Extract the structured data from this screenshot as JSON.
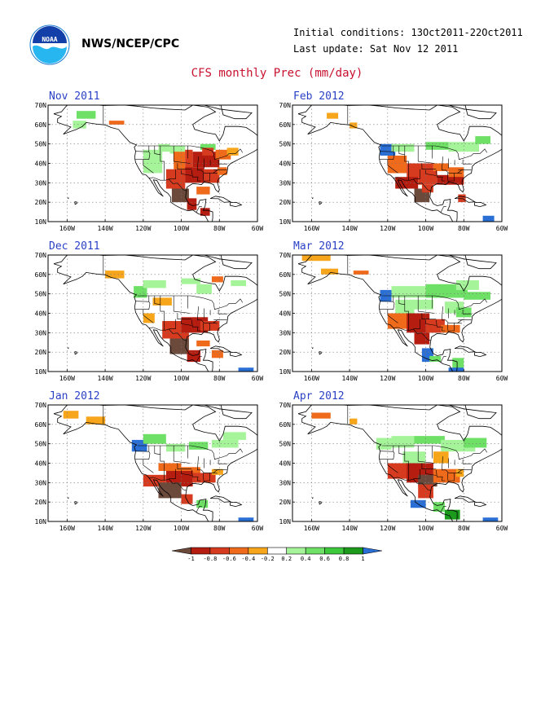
{
  "header": {
    "agency": "NWS/NCEP/CPC",
    "initial_conditions": "Initial conditions: 13Oct2011-22Oct2011",
    "last_update": "Last update: Sat Nov 12 2011",
    "title": "CFS monthly Prec (mm/day)",
    "logo_text": "NOAA"
  },
  "axes": {
    "lat_labels": [
      "70N",
      "60N",
      "50N",
      "40N",
      "30N",
      "20N",
      "10N"
    ],
    "lon_labels": [
      "160W",
      "140W",
      "120W",
      "100W",
      "80W",
      "60W"
    ]
  },
  "panels": [
    {
      "title": "Nov 2011"
    },
    {
      "title": "Feb 2012"
    },
    {
      "title": "Dec 2011"
    },
    {
      "title": "Mar 2012"
    },
    {
      "title": "Jan 2012"
    },
    {
      "title": "Apr 2012"
    }
  ],
  "colorbar": {
    "labels": [
      "-1",
      "-0.8",
      "-0.6",
      "-0.4",
      "-0.2",
      "0.2",
      "0.4",
      "0.6",
      "0.8",
      "1"
    ],
    "colors": [
      "#6b4a3c",
      "#b51d10",
      "#d63b1f",
      "#f06a1c",
      "#f7a51b",
      "#ffffff",
      "#a6f49a",
      "#6ee066",
      "#3cc93c",
      "#1c9a1c",
      "#2a6fd6"
    ]
  },
  "colors": {
    "land": "#ffffff",
    "coast": "#000000",
    "grid": "#777777",
    "panel_title": "#2b41c6",
    "main_title": "#c8102e"
  }
}
